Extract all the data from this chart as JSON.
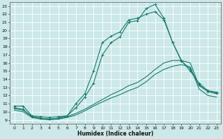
{
  "xlabel": "Humidex (Indice chaleur)",
  "xlim": [
    -0.5,
    23.5
  ],
  "ylim": [
    8.5,
    23.5
  ],
  "yticks": [
    9,
    10,
    11,
    12,
    13,
    14,
    15,
    16,
    17,
    18,
    19,
    20,
    21,
    22,
    23
  ],
  "xticks": [
    0,
    1,
    2,
    3,
    4,
    5,
    6,
    7,
    8,
    9,
    10,
    11,
    12,
    13,
    14,
    15,
    16,
    17,
    18,
    19,
    20,
    21,
    22,
    23
  ],
  "bg_color": "#cce8e8",
  "grid_color": "#b0d8d8",
  "line_color": "#1a7a6e",
  "line1_y": [
    10.7,
    10.7,
    9.5,
    9.4,
    9.3,
    9.4,
    9.5,
    11.0,
    12.2,
    15.0,
    18.5,
    19.3,
    19.8,
    21.3,
    21.5,
    22.0,
    22.3,
    21.3,
    18.5,
    16.2,
    15.3,
    13.3,
    12.5,
    12.3
  ],
  "line2_y": [
    10.5,
    10.3,
    9.4,
    9.2,
    9.1,
    9.2,
    9.5,
    10.5,
    11.8,
    13.5,
    17.0,
    18.5,
    19.2,
    21.0,
    21.2,
    22.7,
    23.2,
    21.5,
    18.5,
    16.3,
    15.0,
    13.5,
    12.6,
    12.4
  ],
  "line3_y": [
    10.4,
    10.2,
    9.4,
    9.2,
    9.1,
    9.2,
    9.4,
    9.8,
    10.3,
    10.9,
    11.5,
    12.1,
    12.6,
    13.2,
    13.6,
    14.3,
    15.2,
    16.0,
    16.3,
    16.3,
    16.0,
    13.2,
    12.5,
    12.2
  ],
  "line4_y": [
    10.2,
    10.0,
    9.3,
    9.1,
    9.0,
    9.1,
    9.3,
    9.6,
    10.1,
    10.7,
    11.2,
    11.7,
    12.1,
    12.6,
    13.0,
    13.7,
    14.6,
    15.2,
    15.6,
    15.8,
    15.5,
    12.8,
    12.0,
    11.8
  ]
}
